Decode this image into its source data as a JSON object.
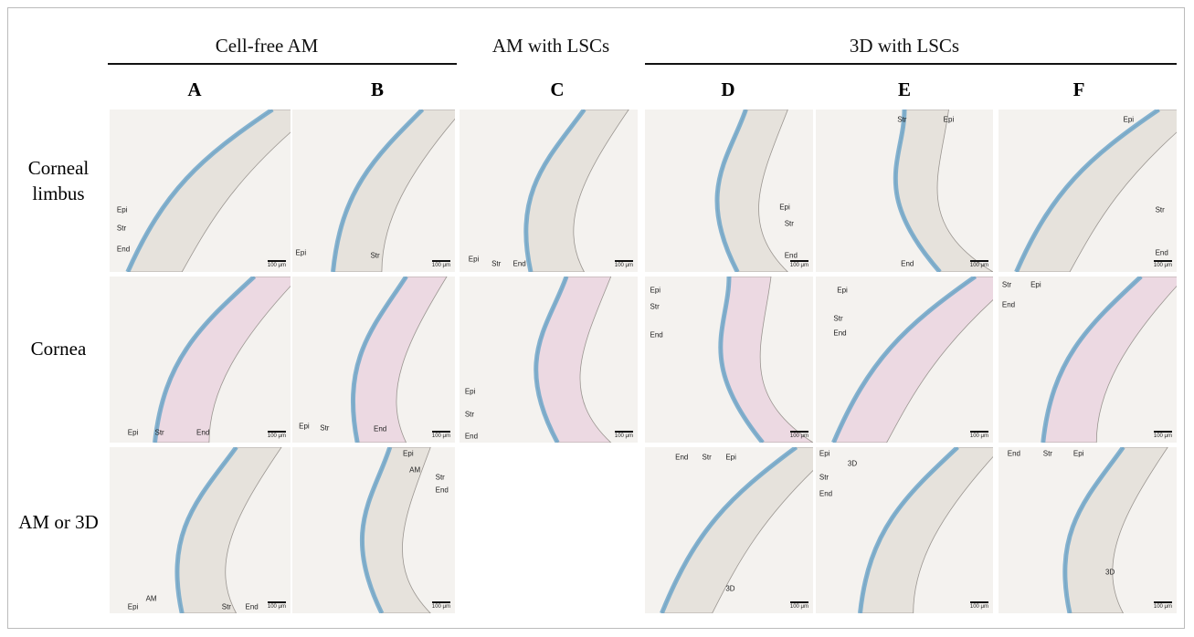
{
  "groups": [
    {
      "title": "Cell-free AM"
    },
    {
      "title": "AM with LSCs"
    },
    {
      "title": "3D with LSCs"
    }
  ],
  "column_letters": [
    "A",
    "B",
    "C",
    "D",
    "E",
    "F"
  ],
  "rows": [
    {
      "label": "Corneal limbus",
      "panels": [
        {
          "labels": [
            "Epi",
            "Str",
            "End"
          ],
          "scale_bar": "100 μm"
        },
        {
          "labels": [
            "Epi",
            "Str"
          ],
          "scale_bar": "100 μm"
        },
        {
          "labels": [
            "Epi",
            "Str",
            "End"
          ],
          "scale_bar": "100 μm"
        },
        {
          "labels": [
            "Epi",
            "Str",
            "End"
          ],
          "scale_bar": "100 μm"
        },
        {
          "labels": [
            "Str",
            "Epi",
            "End"
          ],
          "scale_bar": "100 μm"
        },
        {
          "labels": [
            "Epi",
            "Str",
            "End"
          ],
          "scale_bar": "100 μm"
        }
      ]
    },
    {
      "label": "Cornea",
      "panels": [
        {
          "labels": [
            "Epi",
            "Str",
            "End"
          ],
          "scale_bar": "100 μm"
        },
        {
          "labels": [
            "Epi",
            "Str",
            "End"
          ],
          "scale_bar": "100 μm"
        },
        {
          "labels": [
            "Epi",
            "Str",
            "End"
          ],
          "scale_bar": "100 μm"
        },
        {
          "labels": [
            "Epi",
            "Str",
            "End"
          ],
          "scale_bar": "100 μm"
        },
        {
          "labels": [
            "Epi",
            "Str",
            "End"
          ],
          "scale_bar": "100 μm"
        },
        {
          "labels": [
            "Str",
            "Epi",
            "End"
          ],
          "scale_bar": "100 μm"
        }
      ]
    },
    {
      "label": "AM or 3D",
      "panels": [
        {
          "labels": [
            "AM",
            "Epi",
            "Str",
            "End"
          ],
          "scale_bar": "100 μm"
        },
        {
          "labels": [
            "Epi",
            "AM",
            "Str",
            "End"
          ],
          "scale_bar": "100 μm"
        },
        null,
        {
          "labels": [
            "End",
            "Str",
            "Epi",
            "3D"
          ],
          "scale_bar": "100 μm"
        },
        {
          "labels": [
            "Epi",
            "3D",
            "Str",
            "End"
          ],
          "scale_bar": "100 μm"
        },
        {
          "labels": [
            "End",
            "Str",
            "Epi",
            "3D"
          ],
          "scale_bar": "100 μm"
        }
      ]
    }
  ]
}
